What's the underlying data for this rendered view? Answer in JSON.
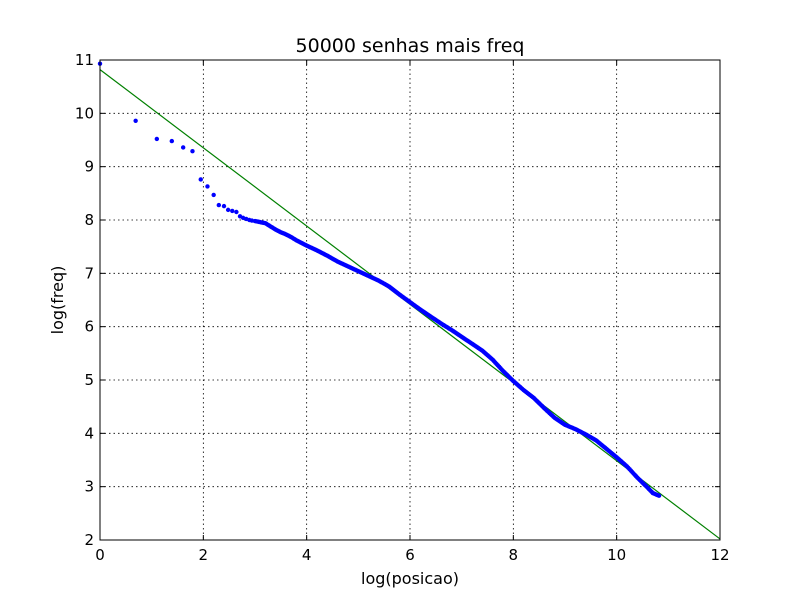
{
  "chart_data": {
    "type": "scatter",
    "title": "50000 senhas mais freq",
    "xlabel": "log(posicao)",
    "ylabel": "log(freq)",
    "xlim": [
      0,
      12
    ],
    "ylim": [
      2,
      11
    ],
    "xticks": [
      "0",
      "2",
      "4",
      "6",
      "8",
      "10",
      "12"
    ],
    "yticks": [
      "2",
      "3",
      "4",
      "5",
      "6",
      "7",
      "8",
      "9",
      "10",
      "11"
    ],
    "grid": true,
    "series": [
      {
        "kind": "points",
        "color": "#0000ff",
        "points": [
          [
            0.0,
            10.93
          ],
          [
            0.69,
            9.86
          ],
          [
            1.1,
            9.52
          ],
          [
            1.39,
            9.48
          ],
          [
            1.61,
            9.36
          ],
          [
            1.79,
            9.29
          ],
          [
            1.95,
            8.76
          ],
          [
            2.08,
            8.63
          ],
          [
            2.2,
            8.47
          ],
          [
            2.3,
            8.28
          ],
          [
            2.4,
            8.26
          ],
          [
            2.48,
            8.19
          ],
          [
            2.56,
            8.17
          ],
          [
            2.64,
            8.15
          ],
          [
            2.71,
            8.07
          ],
          [
            2.77,
            8.04
          ],
          [
            2.83,
            8.02
          ],
          [
            2.89,
            8.0
          ],
          [
            2.94,
            7.99
          ],
          [
            3.0,
            7.98
          ],
          [
            3.1,
            7.96
          ],
          [
            3.2,
            7.94
          ],
          [
            3.3,
            7.88
          ],
          [
            3.4,
            7.82
          ],
          [
            3.5,
            7.77
          ],
          [
            3.6,
            7.73
          ],
          [
            3.7,
            7.68
          ],
          [
            3.8,
            7.62
          ],
          [
            3.9,
            7.57
          ],
          [
            4.0,
            7.52
          ],
          [
            4.2,
            7.43
          ],
          [
            4.4,
            7.33
          ],
          [
            4.6,
            7.22
          ],
          [
            4.8,
            7.13
          ],
          [
            5.0,
            7.04
          ],
          [
            5.2,
            6.95
          ],
          [
            5.4,
            6.86
          ],
          [
            5.6,
            6.75
          ],
          [
            5.8,
            6.6
          ],
          [
            6.0,
            6.46
          ],
          [
            6.2,
            6.32
          ],
          [
            6.4,
            6.19
          ],
          [
            6.6,
            6.06
          ],
          [
            6.8,
            5.94
          ],
          [
            7.0,
            5.81
          ],
          [
            7.2,
            5.68
          ],
          [
            7.4,
            5.55
          ],
          [
            7.6,
            5.38
          ],
          [
            7.8,
            5.17
          ],
          [
            8.0,
            4.98
          ],
          [
            8.2,
            4.81
          ],
          [
            8.4,
            4.66
          ],
          [
            8.6,
            4.47
          ],
          [
            8.8,
            4.29
          ],
          [
            9.0,
            4.16
          ],
          [
            9.2,
            4.08
          ],
          [
            9.4,
            3.98
          ],
          [
            9.6,
            3.87
          ],
          [
            9.8,
            3.71
          ],
          [
            10.0,
            3.55
          ],
          [
            10.2,
            3.38
          ],
          [
            10.4,
            3.17
          ],
          [
            10.6,
            2.98
          ],
          [
            10.7,
            2.88
          ],
          [
            10.82,
            2.83
          ]
        ]
      },
      {
        "kind": "line",
        "color": "#008000",
        "points": [
          [
            0,
            10.82
          ],
          [
            12,
            2.02
          ]
        ]
      }
    ]
  }
}
